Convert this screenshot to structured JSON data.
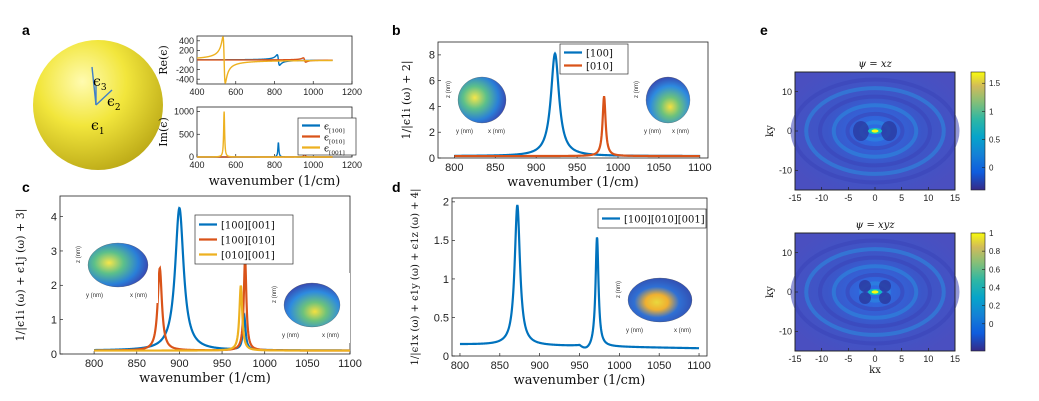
{
  "panels": {
    "a": {
      "letter": "a",
      "sphere_labels": {
        "e1": "ϵ",
        "e1_sub": "1",
        "e2": "ϵ",
        "e2_sub": "2",
        "e3": "ϵ",
        "e3_sub": "3"
      },
      "colors": {
        "sphere": "#f0e53a",
        "arrow": "#3f7fc9"
      }
    },
    "b": {
      "letter": "b"
    },
    "c": {
      "letter": "c"
    },
    "d": {
      "letter": "d"
    },
    "e": {
      "letter": "e"
    }
  },
  "inset_axis_labels": {
    "x": "x (nm)",
    "y": "y (nm)",
    "z": "z (nm)"
  },
  "chart_data": [
    {
      "id": "a-top",
      "type": "line",
      "ylabel": "Re(ϵ)",
      "xlabel": "",
      "xlim": [
        400,
        1200
      ],
      "ylim": [
        -500,
        500
      ],
      "xticks": [
        400,
        600,
        800,
        1000,
        1200
      ],
      "yticks": [
        -400,
        -200,
        0,
        200,
        400
      ],
      "series": [
        {
          "name": "[100]",
          "color": "#0072bd",
          "kind": "dispersive",
          "center": 820,
          "amp": 110
        },
        {
          "name": "[010]",
          "color": "#d95319",
          "kind": "dispersive",
          "center": 955,
          "amp": 45
        },
        {
          "name": "[001]",
          "color": "#edb120",
          "kind": "dispersive",
          "center": 540,
          "amp": 480
        }
      ]
    },
    {
      "id": "a-bottom",
      "type": "line",
      "ylabel": "Im(ϵ)",
      "xlabel": "wavenumber (1/cm)",
      "xlim": [
        400,
        1200
      ],
      "ylim": [
        0,
        1100
      ],
      "xticks": [
        400,
        600,
        800,
        1000,
        1200
      ],
      "yticks": [
        0,
        500,
        1000
      ],
      "legend": {
        "placement": "right",
        "entries": [
          "ϵ[100]",
          "ϵ[010]",
          "ϵ[001]"
        ],
        "base": "ϵ",
        "subs": [
          "[100]",
          "[010]",
          "[001]"
        ]
      },
      "series": [
        {
          "name": "[100]",
          "color": "#0072bd",
          "center": 820,
          "peak": 320
        },
        {
          "name": "[010]",
          "color": "#d95319",
          "center": 955,
          "peak": 110
        },
        {
          "name": "[001]",
          "color": "#edb120",
          "center": 540,
          "peak": 1000
        }
      ]
    },
    {
      "id": "b",
      "type": "line",
      "ylabel": "1/|ϵ1i (ω) + 2|",
      "xlabel": "wavenumber (1/cm)",
      "xlim": [
        780,
        1110
      ],
      "ylim": [
        0,
        9
      ],
      "xticks": [
        800,
        850,
        900,
        950,
        1000,
        1050,
        1100
      ],
      "yticks": [
        0,
        2,
        4,
        6,
        8
      ],
      "legend": {
        "placement": "top-center",
        "entries": [
          "[100]",
          "[010]"
        ]
      },
      "series": [
        {
          "name": "[100]",
          "color": "#0072bd",
          "center": 923,
          "peak": 8.1,
          "width": 6,
          "xrange": [
            800,
            1100
          ]
        },
        {
          "name": "[010]",
          "color": "#d95319",
          "center": 983,
          "peak": 4.8,
          "width": 2.2,
          "xrange": [
            800,
            1100
          ]
        }
      ]
    },
    {
      "id": "c",
      "type": "line",
      "ylabel": "1/|ϵ1i (ω) + ϵ1j (ω) + 3|",
      "xlabel": "wavenumber (1/cm)",
      "xlim": [
        760,
        1100
      ],
      "ylim": [
        0,
        4.6
      ],
      "xticks": [
        800,
        850,
        900,
        950,
        1000,
        1050,
        1100
      ],
      "yticks": [
        0,
        1,
        2,
        3,
        4
      ],
      "legend": {
        "placement": "top-right",
        "entries": [
          "[100][001]",
          "[100][010]",
          "[010][001]"
        ]
      },
      "series": [
        {
          "name": "[100][001]",
          "color": "#0072bd",
          "center": 900,
          "peak": 4.25,
          "width": 6,
          "center2": 976,
          "peak2": 1.0,
          "xrange": [
            800,
            1100
          ]
        },
        {
          "name": "[100][010]",
          "color": "#d95319",
          "center": 877,
          "peak": 2.5,
          "width": 3,
          "center2": 977,
          "peak2": 2.7,
          "xrange": [
            800,
            1100
          ]
        },
        {
          "name": "[010][001]",
          "color": "#edb120",
          "center": 972,
          "peak": 2.0,
          "width": 2,
          "xrange": [
            800,
            1100
          ]
        }
      ]
    },
    {
      "id": "d",
      "type": "line",
      "ylabel": "1/|ϵ1x (ω) + ϵ1y (ω) + ϵ1z (ω) + 4|",
      "xlabel": "wavenumber (1/cm)",
      "xlim": [
        790,
        1110
      ],
      "ylim": [
        0,
        2.05
      ],
      "xticks": [
        800,
        850,
        900,
        950,
        1000,
        1050,
        1100
      ],
      "yticks": [
        0,
        0.5,
        1,
        1.5,
        2
      ],
      "legend": {
        "placement": "top-right",
        "entries": [
          "[100][010][001]"
        ]
      },
      "series": [
        {
          "name": "[100][010][001]",
          "color": "#0072bd",
          "center": 872,
          "peak": 1.9,
          "width": 4,
          "center2": 972,
          "peak2": 1.42,
          "xrange": [
            800,
            1100
          ]
        }
      ]
    },
    {
      "id": "e-top",
      "type": "heatmap",
      "title": "ψ = xz",
      "xlabel": "",
      "ylabel": "ky",
      "xlim": [
        -15,
        15
      ],
      "ylim": [
        -15,
        15
      ],
      "xticks": [
        -15,
        -10,
        -5,
        0,
        5,
        10,
        15
      ],
      "yticks": [
        -10,
        0,
        10
      ],
      "colorbar": {
        "min": -0.4,
        "max": 1.7,
        "ticks": [
          0,
          0.5,
          1,
          1.5
        ]
      }
    },
    {
      "id": "e-bottom",
      "type": "heatmap",
      "title": "ψ = xyz",
      "xlabel": "kx",
      "ylabel": "ky",
      "xlim": [
        -15,
        15
      ],
      "ylim": [
        -15,
        15
      ],
      "xticks": [
        -15,
        -10,
        -5,
        0,
        5,
        10,
        15
      ],
      "yticks": [
        -10,
        0,
        10
      ],
      "colorbar": {
        "min": -0.3,
        "max": 1,
        "ticks": [
          0,
          0.2,
          0.4,
          0.6,
          0.8,
          1
        ]
      }
    }
  ]
}
